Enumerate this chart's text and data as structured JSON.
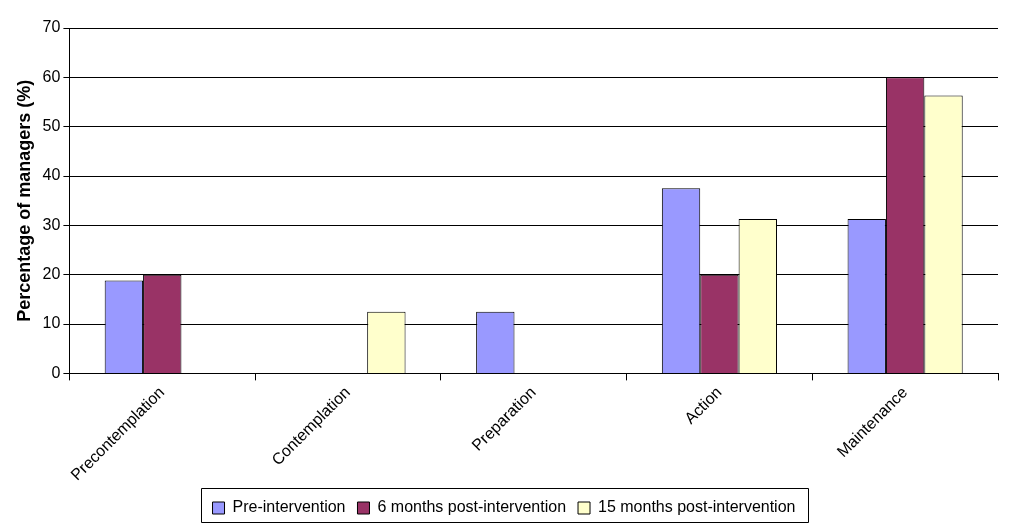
{
  "chart_data": {
    "type": "bar",
    "ylabel": "Percentage of managers (%)",
    "categories": [
      "Precontemplation",
      "Contemplation",
      "Preparation",
      "Action",
      "Maintenance"
    ],
    "series": [
      {
        "name": "Pre-intervention",
        "color": "#9999ff",
        "values": [
          18.8,
          0,
          12.5,
          37.5,
          31.3
        ]
      },
      {
        "name": "6 months post-intervention",
        "color": "#993366",
        "values": [
          20,
          0,
          0,
          20,
          60
        ]
      },
      {
        "name": "15 months post-intervention",
        "color": "#ffffcc",
        "values": [
          0,
          12.5,
          0,
          31.3,
          56.3
        ]
      }
    ],
    "ylim": [
      0,
      70
    ],
    "yticks": [
      0,
      10,
      20,
      30,
      40,
      50,
      60,
      70
    ],
    "grid": "y",
    "legend": "bottom"
  }
}
